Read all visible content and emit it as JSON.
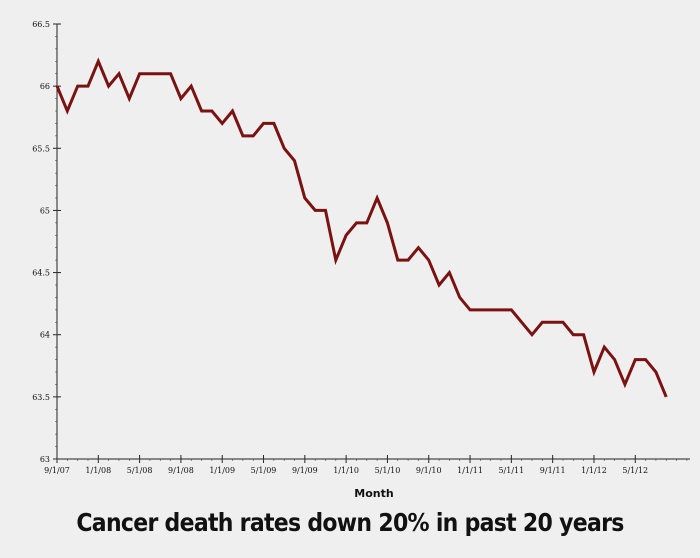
{
  "chart_data": {
    "type": "line",
    "title": "Cancer death rates down 20% in past 20 years",
    "xlabel": "Month",
    "ylabel": "",
    "ylim": [
      63,
      66.5
    ],
    "yticks": [
      63,
      63.5,
      64,
      64.5,
      65,
      65.5,
      66,
      66.5
    ],
    "ytick_labels": [
      "63",
      "63.5",
      "64",
      "64.5",
      "65",
      "65.5",
      "66",
      "66.5"
    ],
    "x_start": "9/1/07",
    "xtick_labels": [
      "9/1/07",
      "1/1/08",
      "5/1/08",
      "9/1/08",
      "1/1/09",
      "5/1/09",
      "9/1/09",
      "1/1/10",
      "5/1/10",
      "9/1/10",
      "1/1/11",
      "5/1/11",
      "9/1/11",
      "1/1/12",
      "5/1/12"
    ],
    "xtick_months": [
      0,
      4,
      8,
      12,
      16,
      20,
      24,
      28,
      32,
      36,
      40,
      44,
      48,
      52,
      56
    ],
    "series": [
      {
        "name": "",
        "color": "#7a1212",
        "x_months": [
          0,
          1,
          2,
          3,
          4,
          5,
          6,
          7,
          8,
          9,
          10,
          11,
          12,
          13,
          14,
          15,
          16,
          17,
          18,
          19,
          20,
          21,
          22,
          23,
          24,
          25,
          26,
          27,
          28,
          29,
          30,
          31,
          32,
          33,
          34,
          35,
          36,
          37,
          38,
          39,
          40,
          41,
          42,
          43,
          44,
          45,
          46,
          47,
          48,
          49,
          50,
          51,
          52,
          53,
          54,
          55,
          56,
          57,
          58,
          59,
          60
        ],
        "values": [
          66.0,
          65.8,
          66.0,
          66.0,
          66.2,
          66.0,
          66.1,
          65.9,
          66.1,
          66.1,
          66.1,
          66.1,
          65.9,
          66.0,
          65.8,
          65.8,
          65.7,
          65.8,
          65.6,
          65.6,
          65.7,
          65.7,
          65.5,
          65.4,
          65.1,
          65.0,
          65.0,
          64.6,
          64.8,
          64.9,
          64.9,
          65.1,
          64.9,
          64.6,
          64.6,
          64.7,
          64.6,
          64.4,
          64.5,
          64.3,
          64.2,
          64.2,
          64.2,
          64.2,
          64.2,
          64.1,
          64.0,
          64.1,
          64.1,
          64.1,
          64.0,
          64.0,
          63.7,
          63.9,
          63.8,
          63.6,
          63.8,
          63.8,
          63.7,
          63.5,
          null
        ]
      }
    ],
    "grid": false,
    "legend": "none"
  }
}
